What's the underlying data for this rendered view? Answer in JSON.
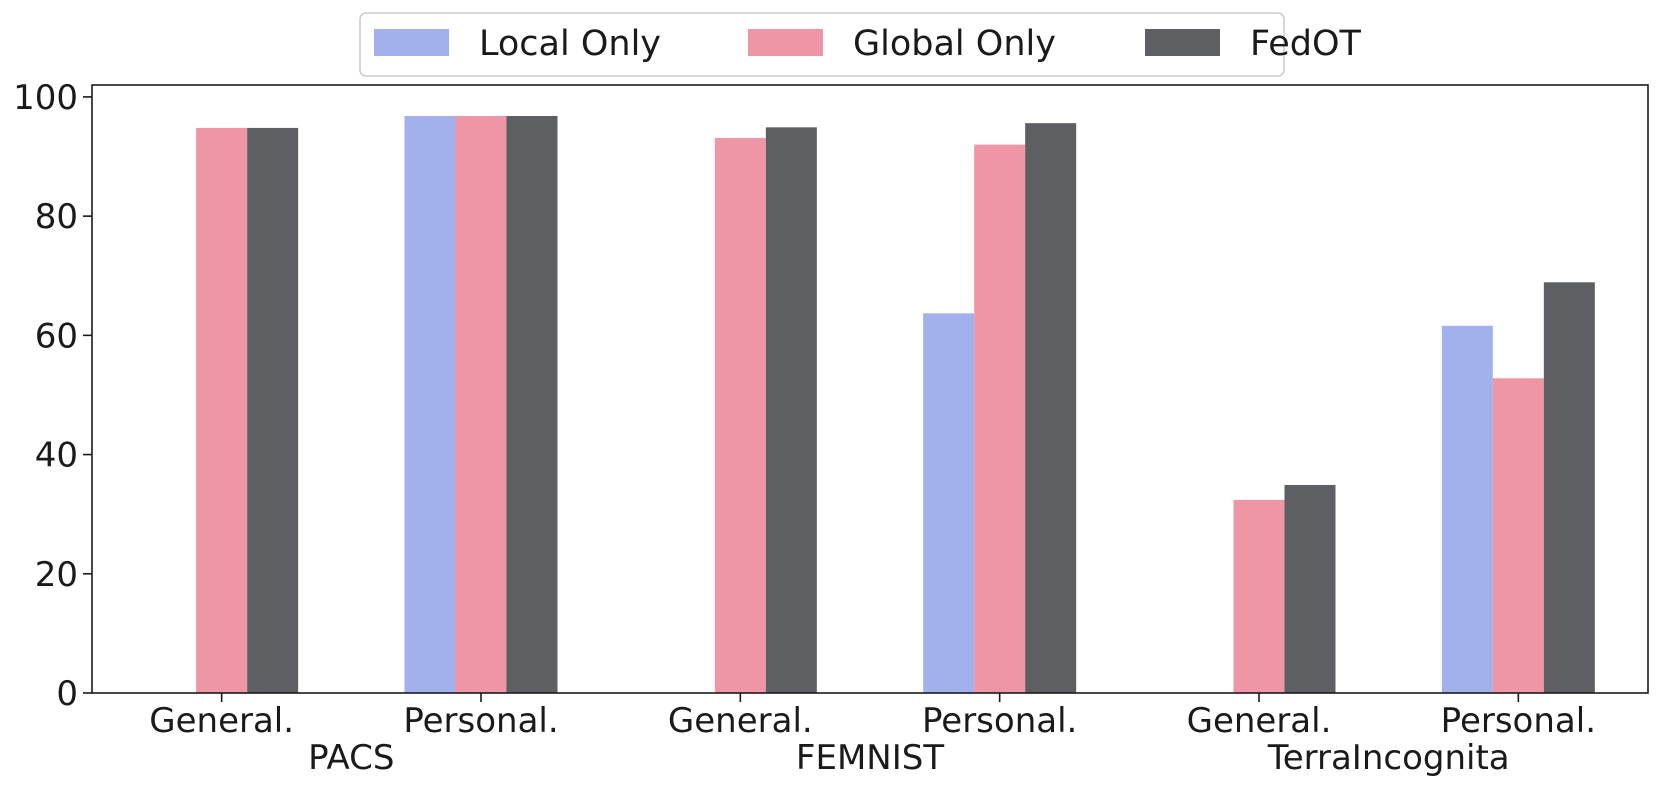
{
  "chart_data": {
    "type": "bar",
    "categories": [
      "General.",
      "Personal.",
      "General.",
      "Personal.",
      "General.",
      "Personal."
    ],
    "groups": [
      "PACS",
      "FEMNIST",
      "TerraIncognita"
    ],
    "series": [
      {
        "name": "Local Only",
        "color": "#a2b0eb",
        "values": [
          null,
          96.8,
          null,
          63.7,
          null,
          61.6
        ]
      },
      {
        "name": "Global Only",
        "color": "#ee95a6",
        "values": [
          94.8,
          96.8,
          93.1,
          92.0,
          32.4,
          52.8
        ]
      },
      {
        "name": "FedOT",
        "color": "#5e5f63",
        "values": [
          94.8,
          96.8,
          94.9,
          95.6,
          34.9,
          68.9
        ]
      }
    ],
    "ylim": [
      0,
      102
    ],
    "yticks": [
      0,
      20,
      40,
      60,
      80,
      100
    ],
    "legend_position": "top-center",
    "grid": false
  }
}
